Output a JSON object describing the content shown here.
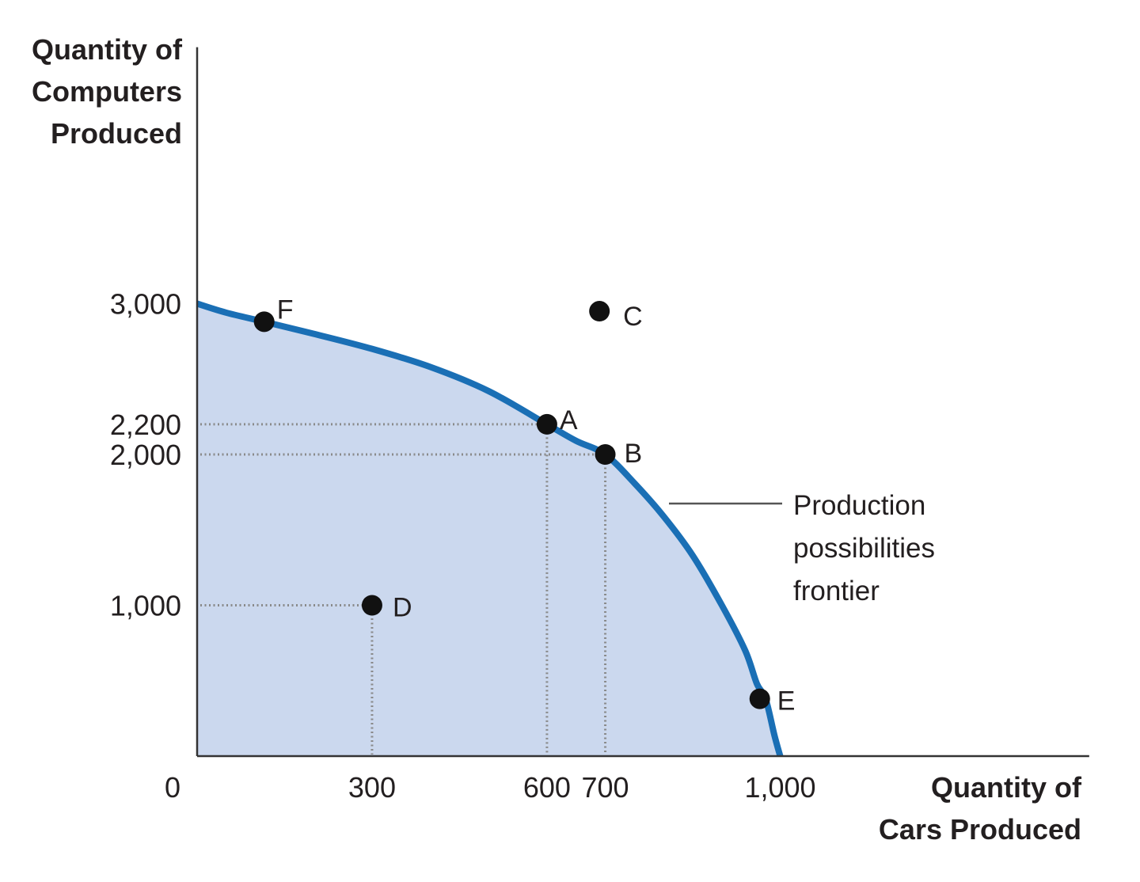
{
  "chart_data": {
    "type": "line",
    "title": "",
    "xlabel": "Quantity of Cars Produced",
    "ylabel": "Quantity of Computers Produced",
    "x_axis_title_lines": [
      "Quantity of",
      "Cars Produced"
    ],
    "y_axis_title_lines": [
      "Quantity of",
      "Computers",
      "Produced"
    ],
    "xlim": [
      0,
      1530
    ],
    "ylim": [
      0,
      4700
    ],
    "origin_label": "0",
    "x_ticks": [
      {
        "value": 300,
        "label": "300"
      },
      {
        "value": 600,
        "label": "600"
      },
      {
        "value": 700,
        "label": "700"
      },
      {
        "value": 1000,
        "label": "1,000"
      }
    ],
    "y_ticks": [
      {
        "value": 1000,
        "label": "1,000"
      },
      {
        "value": 2000,
        "label": "2,000"
      },
      {
        "value": 2200,
        "label": "2,200"
      },
      {
        "value": 3000,
        "label": "3,000"
      }
    ],
    "series": [
      {
        "name": "Production possibilities frontier",
        "color": "#1a6fb5",
        "fill": "#cbd8ee",
        "x": [
          0,
          50,
          115,
          200,
          300,
          400,
          500,
          600,
          650,
          700,
          750,
          800,
          850,
          900,
          940,
          960,
          975,
          990,
          1000
        ],
        "y": [
          3000,
          2940,
          2880,
          2800,
          2700,
          2580,
          2420,
          2200,
          2090,
          2000,
          1810,
          1590,
          1330,
          1000,
          700,
          480,
          380,
          140,
          0
        ]
      }
    ],
    "points": [
      {
        "label": "A",
        "x": 600,
        "y": 2200
      },
      {
        "label": "B",
        "x": 700,
        "y": 2000
      },
      {
        "label": "C",
        "x": 690,
        "y": 2950
      },
      {
        "label": "D",
        "x": 300,
        "y": 1000
      },
      {
        "label": "E",
        "x": 965,
        "y": 380
      },
      {
        "label": "F",
        "x": 115,
        "y": 2880
      }
    ],
    "reference_lines": [
      {
        "point": "A",
        "x": 600,
        "y": 2200
      },
      {
        "point": "B",
        "x": 700,
        "y": 2000
      },
      {
        "point": "D",
        "x": 300,
        "y": 1000
      }
    ],
    "annotation": {
      "lines": [
        "Production",
        "possibilities",
        "frontier"
      ],
      "target_series": "Production possibilities frontier"
    },
    "grid": false,
    "legend": "none",
    "colors": {
      "curve": "#1a6fb5",
      "area": "#cbd8ee",
      "point": "#111111",
      "guide": "#8a8a8a",
      "axis": "#333333"
    }
  }
}
